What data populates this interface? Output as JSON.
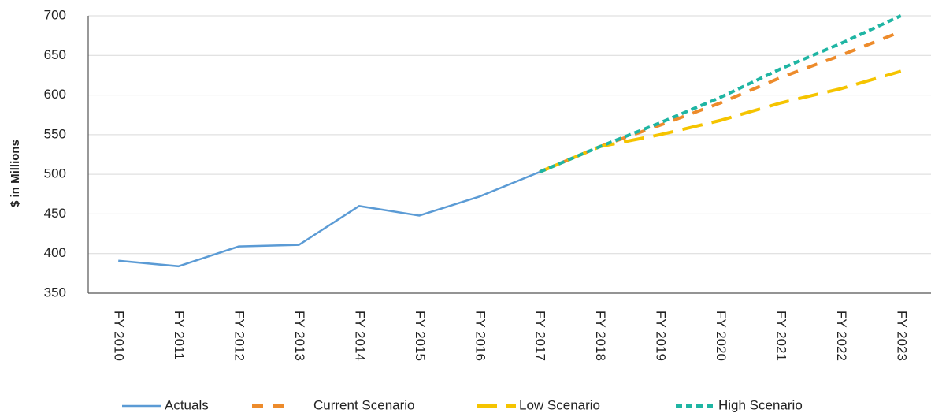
{
  "chart_data": {
    "type": "line",
    "y_label": "$ in Millions",
    "categories": [
      "FY 2010",
      "FY 2011",
      "FY 2012",
      "FY 2013",
      "FY 2014",
      "FY 2015",
      "FY 2016",
      "FY 2017",
      "FY 2018",
      "FY 2019",
      "FY 2020",
      "FY 2021",
      "FY 2022",
      "FY 2023"
    ],
    "series": [
      {
        "name": "Actuals",
        "color": "#5b9bd5",
        "dash": "solid",
        "values": [
          391,
          384,
          409,
          411,
          460,
          448,
          472,
          503,
          null,
          null,
          null,
          null,
          null,
          null
        ]
      },
      {
        "name": "Current Scenario",
        "color": "#ed8b2b",
        "dash": "dashed",
        "values": [
          null,
          null,
          null,
          null,
          null,
          null,
          null,
          503,
          535,
          562,
          590,
          622,
          650,
          680
        ]
      },
      {
        "name": "Low Scenario",
        "color": "#f5c400",
        "dash": "long-dash",
        "values": [
          null,
          null,
          null,
          null,
          null,
          null,
          null,
          503,
          535,
          550,
          568,
          590,
          608,
          630
        ]
      },
      {
        "name": "High Scenario",
        "color": "#1fb5a3",
        "dash": "short-dash",
        "values": [
          null,
          null,
          null,
          null,
          null,
          null,
          null,
          503,
          535,
          565,
          597,
          633,
          665,
          700
        ]
      }
    ],
    "ylim": [
      350,
      700
    ],
    "yticks": [
      350,
      400,
      450,
      500,
      550,
      600,
      650,
      700
    ],
    "grid": true,
    "legend": "bottom"
  }
}
